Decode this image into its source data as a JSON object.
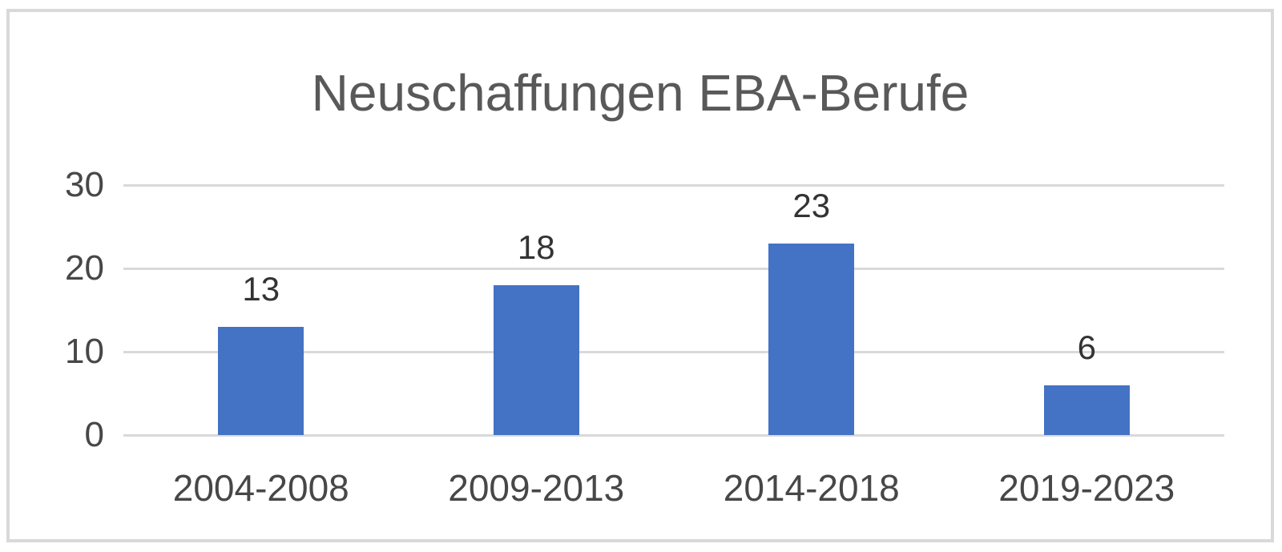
{
  "chart_data": {
    "type": "bar",
    "title": "Neuschaffungen EBA-Berufe",
    "categories": [
      "2004-2008",
      "2009-2013",
      "2014-2018",
      "2019-2023"
    ],
    "values": [
      13,
      18,
      23,
      6
    ],
    "data_labels": [
      "13",
      "18",
      "23",
      "6"
    ],
    "y_ticks": [
      0,
      10,
      20,
      30
    ],
    "ylim": [
      0,
      30
    ],
    "xlabel": "",
    "ylabel": "",
    "grid": "horizontal",
    "legend": "none",
    "colors": {
      "bar_fill": "#4472C4",
      "gridline": "#D9D9D9",
      "frame_border": "#D9D9D9",
      "title_text": "#595959",
      "axis_text": "#474747",
      "data_label_text": "#333333",
      "background": "#FFFFFF"
    }
  }
}
